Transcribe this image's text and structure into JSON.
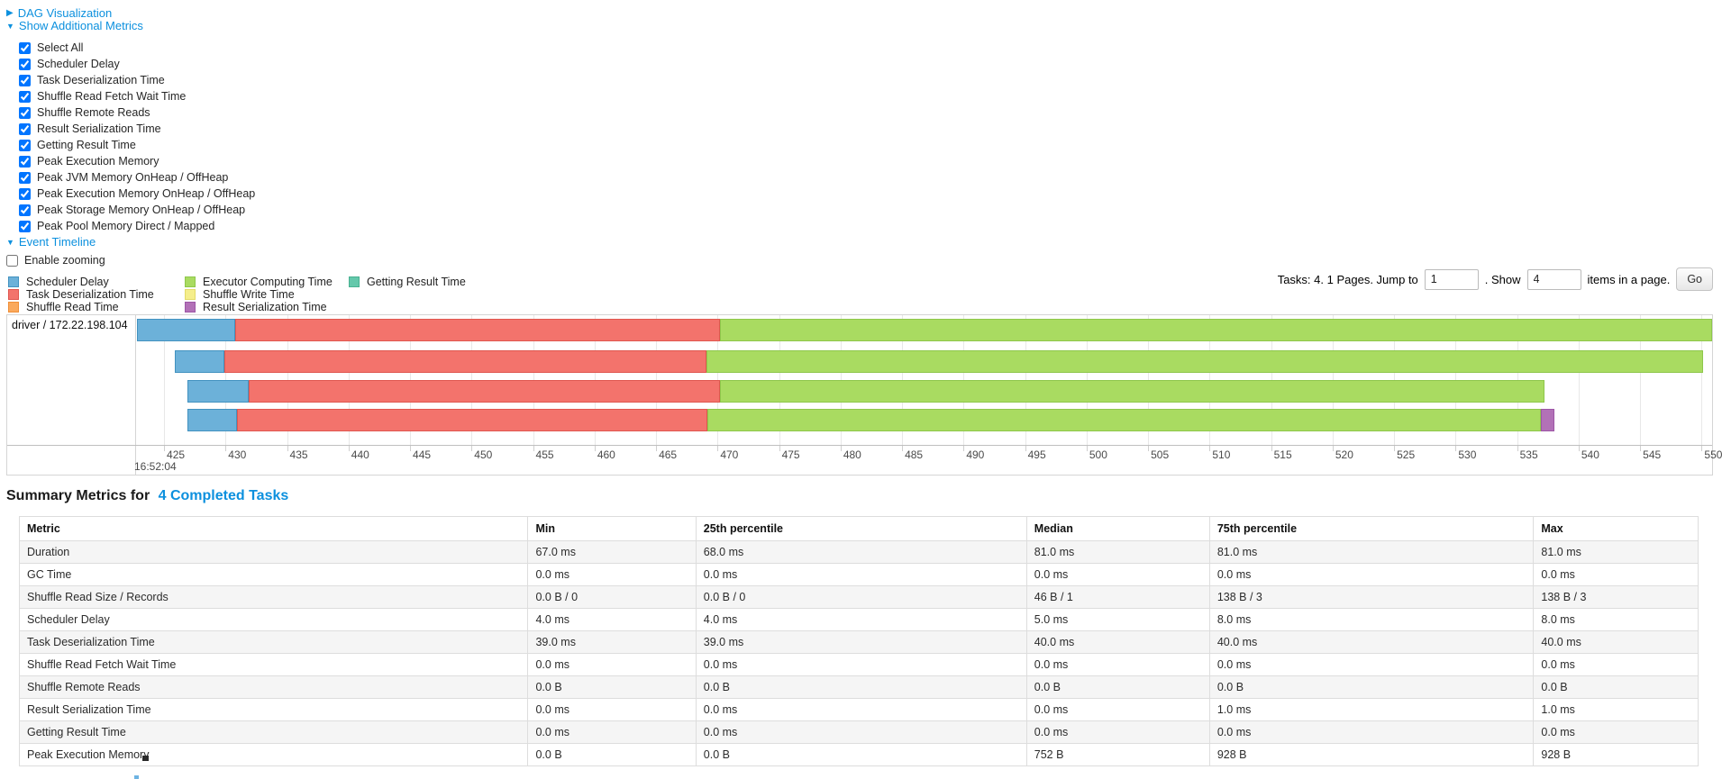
{
  "colors": {
    "link": "#0c90de",
    "chart_border": "#d5d5d5",
    "segment_types": {
      "scheduler-delay": {
        "fill": "#6CB1D9",
        "border": "#4292C0"
      },
      "task-deserialization": {
        "fill": "#F3736C",
        "border": "#E0564F"
      },
      "shuffle-read": {
        "fill": "#FAA95C",
        "border": "#F08F38"
      },
      "executor-computing": {
        "fill": "#A9DB61",
        "border": "#8EC74B"
      },
      "shuffle-write": {
        "fill": "#F5EE8B",
        "border": "#E3DB68"
      },
      "result-serialization": {
        "fill": "#B271B7",
        "border": "#9D56A6"
      },
      "getting-result": {
        "fill": "#64C8AB",
        "border": "#48B191"
      }
    }
  },
  "controls": {
    "dag": {
      "label": "DAG Visualization",
      "caret": "▶",
      "expanded": false
    },
    "additional_metrics": {
      "label": "Show Additional Metrics",
      "caret": "▼",
      "expanded": true,
      "items": [
        {
          "label": "Select All",
          "checked": true
        },
        {
          "label": "Scheduler Delay",
          "checked": true
        },
        {
          "label": "Task Deserialization Time",
          "checked": true
        },
        {
          "label": "Shuffle Read Fetch Wait Time",
          "checked": true
        },
        {
          "label": "Shuffle Remote Reads",
          "checked": true
        },
        {
          "label": "Result Serialization Time",
          "checked": true
        },
        {
          "label": "Getting Result Time",
          "checked": true
        },
        {
          "label": "Peak Execution Memory",
          "checked": true
        },
        {
          "label": "Peak JVM Memory OnHeap / OffHeap",
          "checked": true
        },
        {
          "label": "Peak Execution Memory OnHeap / OffHeap",
          "checked": true
        },
        {
          "label": "Peak Storage Memory OnHeap / OffHeap",
          "checked": true
        },
        {
          "label": "Peak Pool Memory Direct / Mapped",
          "checked": true
        }
      ]
    },
    "event_timeline": {
      "label": "Event Timeline",
      "caret": "▼",
      "expanded": true
    },
    "enable_zooming": {
      "label": "Enable zooming",
      "checked": false
    }
  },
  "legend": {
    "columns": [
      [
        {
          "label": "Scheduler Delay",
          "type": "scheduler-delay"
        },
        {
          "label": "Task Deserialization Time",
          "type": "task-deserialization"
        },
        {
          "label": "Shuffle Read Time",
          "type": "shuffle-read"
        }
      ],
      [
        {
          "label": "Executor Computing Time",
          "type": "executor-computing"
        },
        {
          "label": "Shuffle Write Time",
          "type": "shuffle-write"
        },
        {
          "label": "Result Serialization Time",
          "type": "result-serialization"
        }
      ],
      [
        {
          "label": "Getting Result Time",
          "type": "getting-result"
        }
      ]
    ]
  },
  "pagination": {
    "prefix": "Tasks: 4. 1 Pages. Jump to",
    "jump_value": "1",
    "mid": ". Show",
    "show_value": "4",
    "suffix": "items in a page.",
    "go_label": "Go"
  },
  "timeline": {
    "row_label": "driver / 172.22.198.104",
    "axis": {
      "view_min": 422.8,
      "view_max": 550.85,
      "tick_start": 425,
      "tick_end": 550,
      "tick_step": 5,
      "major_label": "16:52:04"
    },
    "tasks": [
      {
        "segments": [
          [
            422.8,
            430.8,
            "scheduler-delay"
          ],
          [
            430.8,
            470.2,
            "task-deserialization"
          ],
          [
            470.2,
            550.85,
            "executor-computing"
          ]
        ]
      },
      {
        "segments": [
          [
            425.9,
            429.9,
            "scheduler-delay"
          ],
          [
            429.9,
            469.1,
            "task-deserialization"
          ],
          [
            469.1,
            550.1,
            "executor-computing"
          ]
        ]
      },
      {
        "segments": [
          [
            426.9,
            431.9,
            "scheduler-delay"
          ],
          [
            431.9,
            470.2,
            "task-deserialization"
          ],
          [
            470.2,
            537.2,
            "executor-computing"
          ]
        ]
      },
      {
        "segments": [
          [
            426.9,
            430.9,
            "scheduler-delay"
          ],
          [
            430.9,
            469.2,
            "task-deserialization"
          ],
          [
            469.2,
            536.9,
            "executor-computing"
          ],
          [
            536.9,
            538.0,
            "result-serialization"
          ]
        ]
      }
    ],
    "row_tops": [
      4,
      39,
      72,
      104
    ]
  },
  "summary": {
    "title_prefix": "Summary Metrics for",
    "title_link": "4 Completed Tasks",
    "table": {
      "col_widths_pct": [
        30.3,
        10.0,
        19.7,
        10.9,
        19.3,
        9.8
      ],
      "headers": [
        "Metric",
        "Min",
        "25th percentile",
        "Median",
        "75th percentile",
        "Max"
      ],
      "rows": [
        {
          "metric": "Duration",
          "values": [
            "67.0 ms",
            "68.0 ms",
            "81.0 ms",
            "81.0 ms",
            "81.0 ms"
          ]
        },
        {
          "metric": "GC Time",
          "values": [
            "0.0 ms",
            "0.0 ms",
            "0.0 ms",
            "0.0 ms",
            "0.0 ms"
          ]
        },
        {
          "metric": "Shuffle Read Size / Records",
          "values": [
            "0.0 B / 0",
            "0.0 B / 0",
            "46 B / 1",
            "138 B / 3",
            "138 B / 3"
          ]
        },
        {
          "metric": "Scheduler Delay",
          "values": [
            "4.0 ms",
            "4.0 ms",
            "5.0 ms",
            "8.0 ms",
            "8.0 ms"
          ]
        },
        {
          "metric": "Task Deserialization Time",
          "values": [
            "39.0 ms",
            "39.0 ms",
            "40.0 ms",
            "40.0 ms",
            "40.0 ms"
          ]
        },
        {
          "metric": "Shuffle Read Fetch Wait Time",
          "values": [
            "0.0 ms",
            "0.0 ms",
            "0.0 ms",
            "0.0 ms",
            "0.0 ms"
          ]
        },
        {
          "metric": "Shuffle Remote Reads",
          "values": [
            "0.0 B",
            "0.0 B",
            "0.0 B",
            "0.0 B",
            "0.0 B"
          ]
        },
        {
          "metric": "Result Serialization Time",
          "values": [
            "0.0 ms",
            "0.0 ms",
            "0.0 ms",
            "1.0 ms",
            "1.0 ms"
          ]
        },
        {
          "metric": "Getting Result Time",
          "values": [
            "0.0 ms",
            "0.0 ms",
            "0.0 ms",
            "0.0 ms",
            "0.0 ms"
          ]
        },
        {
          "metric": "Peak Execution Memory",
          "values": [
            "0.0 B",
            "0.0 B",
            "752 B",
            "928 B",
            "928 B"
          ]
        }
      ]
    }
  }
}
